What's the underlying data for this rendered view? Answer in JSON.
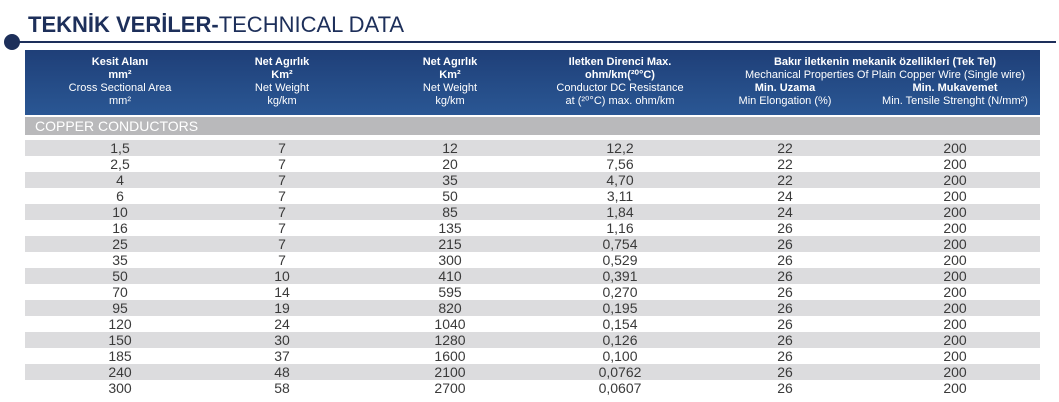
{
  "header": {
    "title_bold": "TEKNİK VERİLER-",
    "title_regular": "TECHNICAL DATA"
  },
  "table": {
    "columns": [
      [
        "Kesit Alanı",
        "mm²",
        "Cross Sectional Area",
        "mm²"
      ],
      [
        "Net Agırlık",
        "Km²",
        "Net Weight",
        "kg/km"
      ],
      [
        "Net Agırlık",
        "Km²",
        "Net Weight",
        "kg/km"
      ],
      [
        "Iletken Direnci Max.",
        "ohm/km(²⁰°C)",
        "Conductor DC Resistance",
        "at (²⁰°C) max. ohm/km"
      ],
      [
        "Min. Uzama",
        "Min Elongation (%)"
      ],
      [
        "Min. Mukavemet",
        "Min. Tensile Strenght (N/mm²)"
      ]
    ],
    "group_header": [
      "Bakır iletkenin mekanik özellikleri (Tek Tel)",
      "Mechanical Properties Of Plain Copper Wire (Single wire)"
    ],
    "section": "COPPER CONDUCTORS",
    "rows": [
      [
        "1,5",
        "7",
        "12",
        "12,2",
        "22",
        "200"
      ],
      [
        "2,5",
        "7",
        "20",
        "7,56",
        "22",
        "200"
      ],
      [
        "4",
        "7",
        "35",
        "4,70",
        "22",
        "200"
      ],
      [
        "6",
        "7",
        "50",
        "3,11",
        "24",
        "200"
      ],
      [
        "10",
        "7",
        "85",
        "1,84",
        "24",
        "200"
      ],
      [
        "16",
        "7",
        "135",
        "1,16",
        "26",
        "200"
      ],
      [
        "25",
        "7",
        "215",
        "0,754",
        "26",
        "200"
      ],
      [
        "35",
        "7",
        "300",
        "0,529",
        "26",
        "200"
      ],
      [
        "50",
        "10",
        "410",
        "0,391",
        "26",
        "200"
      ],
      [
        "70",
        "14",
        "595",
        "0,270",
        "26",
        "200"
      ],
      [
        "95",
        "19",
        "820",
        "0,195",
        "26",
        "200"
      ],
      [
        "120",
        "24",
        "1040",
        "0,154",
        "26",
        "200"
      ],
      [
        "150",
        "30",
        "1280",
        "0,126",
        "26",
        "200"
      ],
      [
        "185",
        "37",
        "1600",
        "0,100",
        "26",
        "200"
      ],
      [
        "240",
        "48",
        "2100",
        "0,0762",
        "26",
        "200"
      ],
      [
        "300",
        "58",
        "2700",
        "0,0607",
        "26",
        "200"
      ]
    ]
  }
}
